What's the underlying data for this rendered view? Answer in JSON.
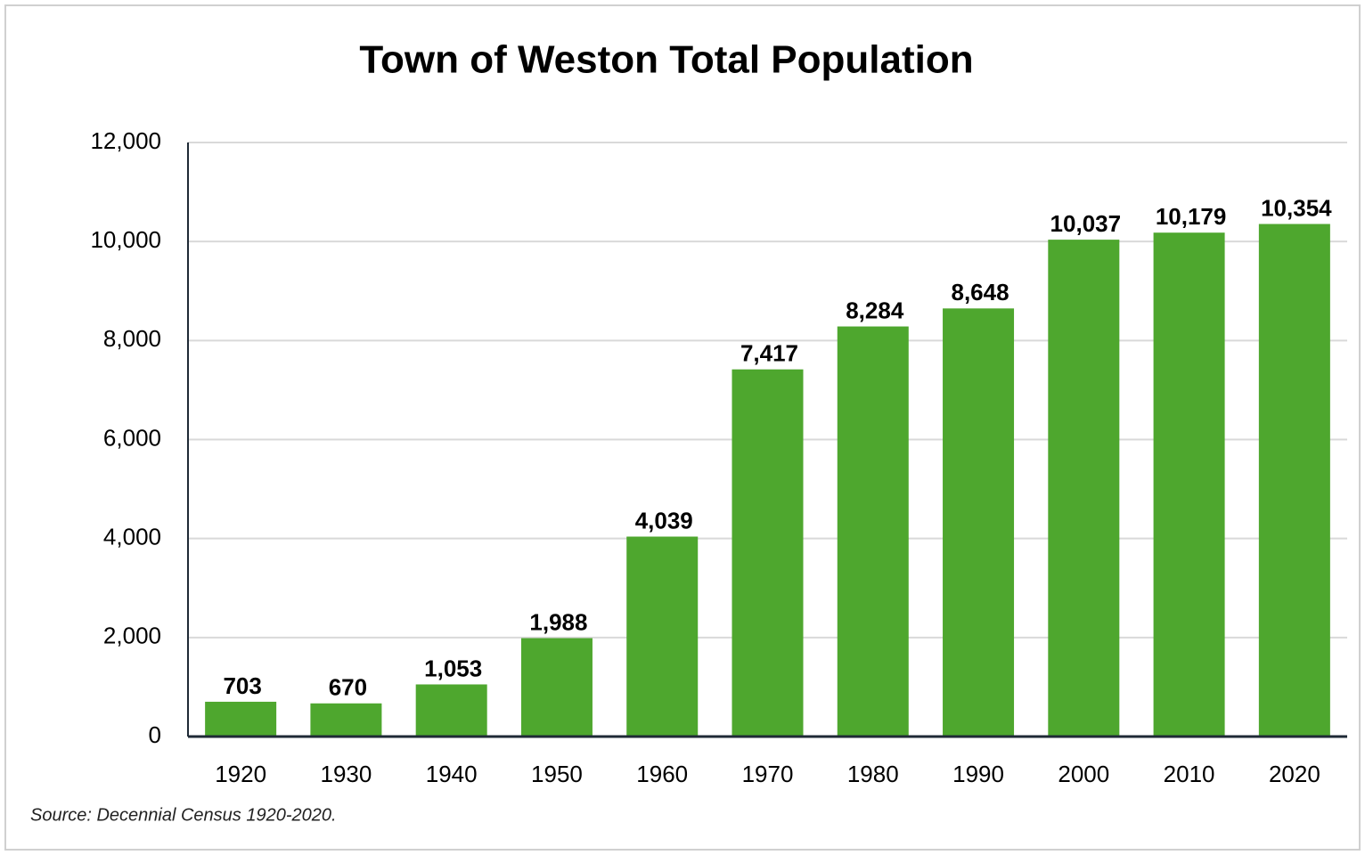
{
  "chart_data": {
    "type": "bar",
    "title": "Town of Weston Total Population",
    "categories": [
      "1920",
      "1930",
      "1940",
      "1950",
      "1960",
      "1970",
      "1980",
      "1990",
      "2000",
      "2010",
      "2020"
    ],
    "values": [
      703,
      670,
      1053,
      1988,
      4039,
      7417,
      8284,
      8648,
      10037,
      10179,
      10354
    ],
    "value_labels": [
      "703",
      "670",
      "1,053",
      "1,988",
      "4,039",
      "7,417",
      "8,284",
      "8,648",
      "10,037",
      "10,179",
      "10,354"
    ],
    "color": "#4ea72e",
    "ylim": [
      0,
      12000
    ],
    "yticks": [
      0,
      {
        "value": 2000,
        "label": "2,000"
      },
      {
        "value": 4000,
        "label": "4,000"
      },
      {
        "value": 6000,
        "label": "6,000"
      },
      {
        "value": 8000,
        "label": "8,000"
      },
      {
        "value": 10000,
        "label": "10,000"
      },
      {
        "value": 12000,
        "label": "12,000"
      }
    ],
    "grid": true,
    "source": "Source: Decennial Census 1920-2020."
  }
}
